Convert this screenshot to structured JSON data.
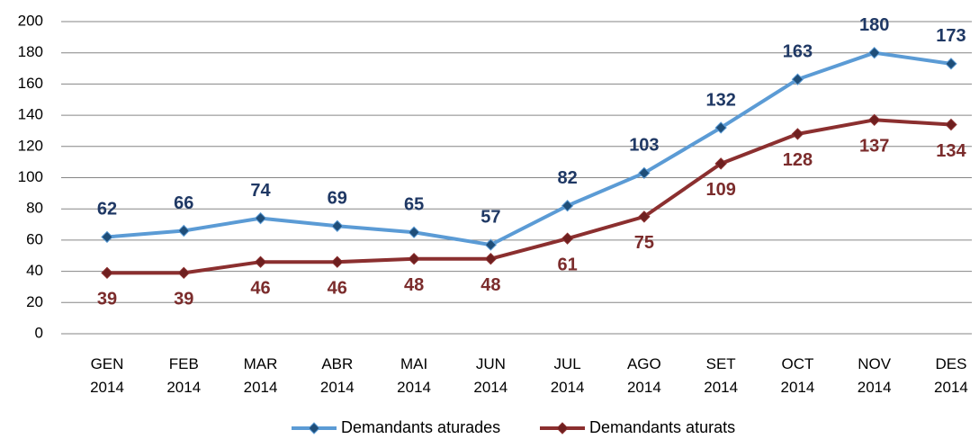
{
  "chart_data": {
    "type": "line",
    "categories": [
      "GEN 2014",
      "FEB 2014",
      "MAR 2014",
      "ABR 2014",
      "MAI 2014",
      "JUN 2014",
      "JUL 2014",
      "AGO 2014",
      "SET 2014",
      "OCT 2014",
      "NOV 2014",
      "DES 2014"
    ],
    "series": [
      {
        "name": "Demandants aturades",
        "color": "#5b9bd5",
        "marker_color": "#1f4e79",
        "label_color": "#1f3864",
        "values": [
          62,
          66,
          74,
          69,
          65,
          57,
          82,
          103,
          132,
          163,
          180,
          173
        ]
      },
      {
        "name": "Demandants aturats",
        "color": "#8b2f2f",
        "marker_color": "#6e1f1f",
        "label_color": "#7b2c2c",
        "values": [
          39,
          39,
          46,
          46,
          48,
          48,
          61,
          75,
          109,
          128,
          137,
          134
        ]
      }
    ],
    "ylim": [
      0,
      200
    ],
    "yticks": [
      0,
      20,
      40,
      60,
      80,
      100,
      120,
      140,
      160,
      180,
      200
    ],
    "grid": true,
    "legend": "bottom"
  }
}
